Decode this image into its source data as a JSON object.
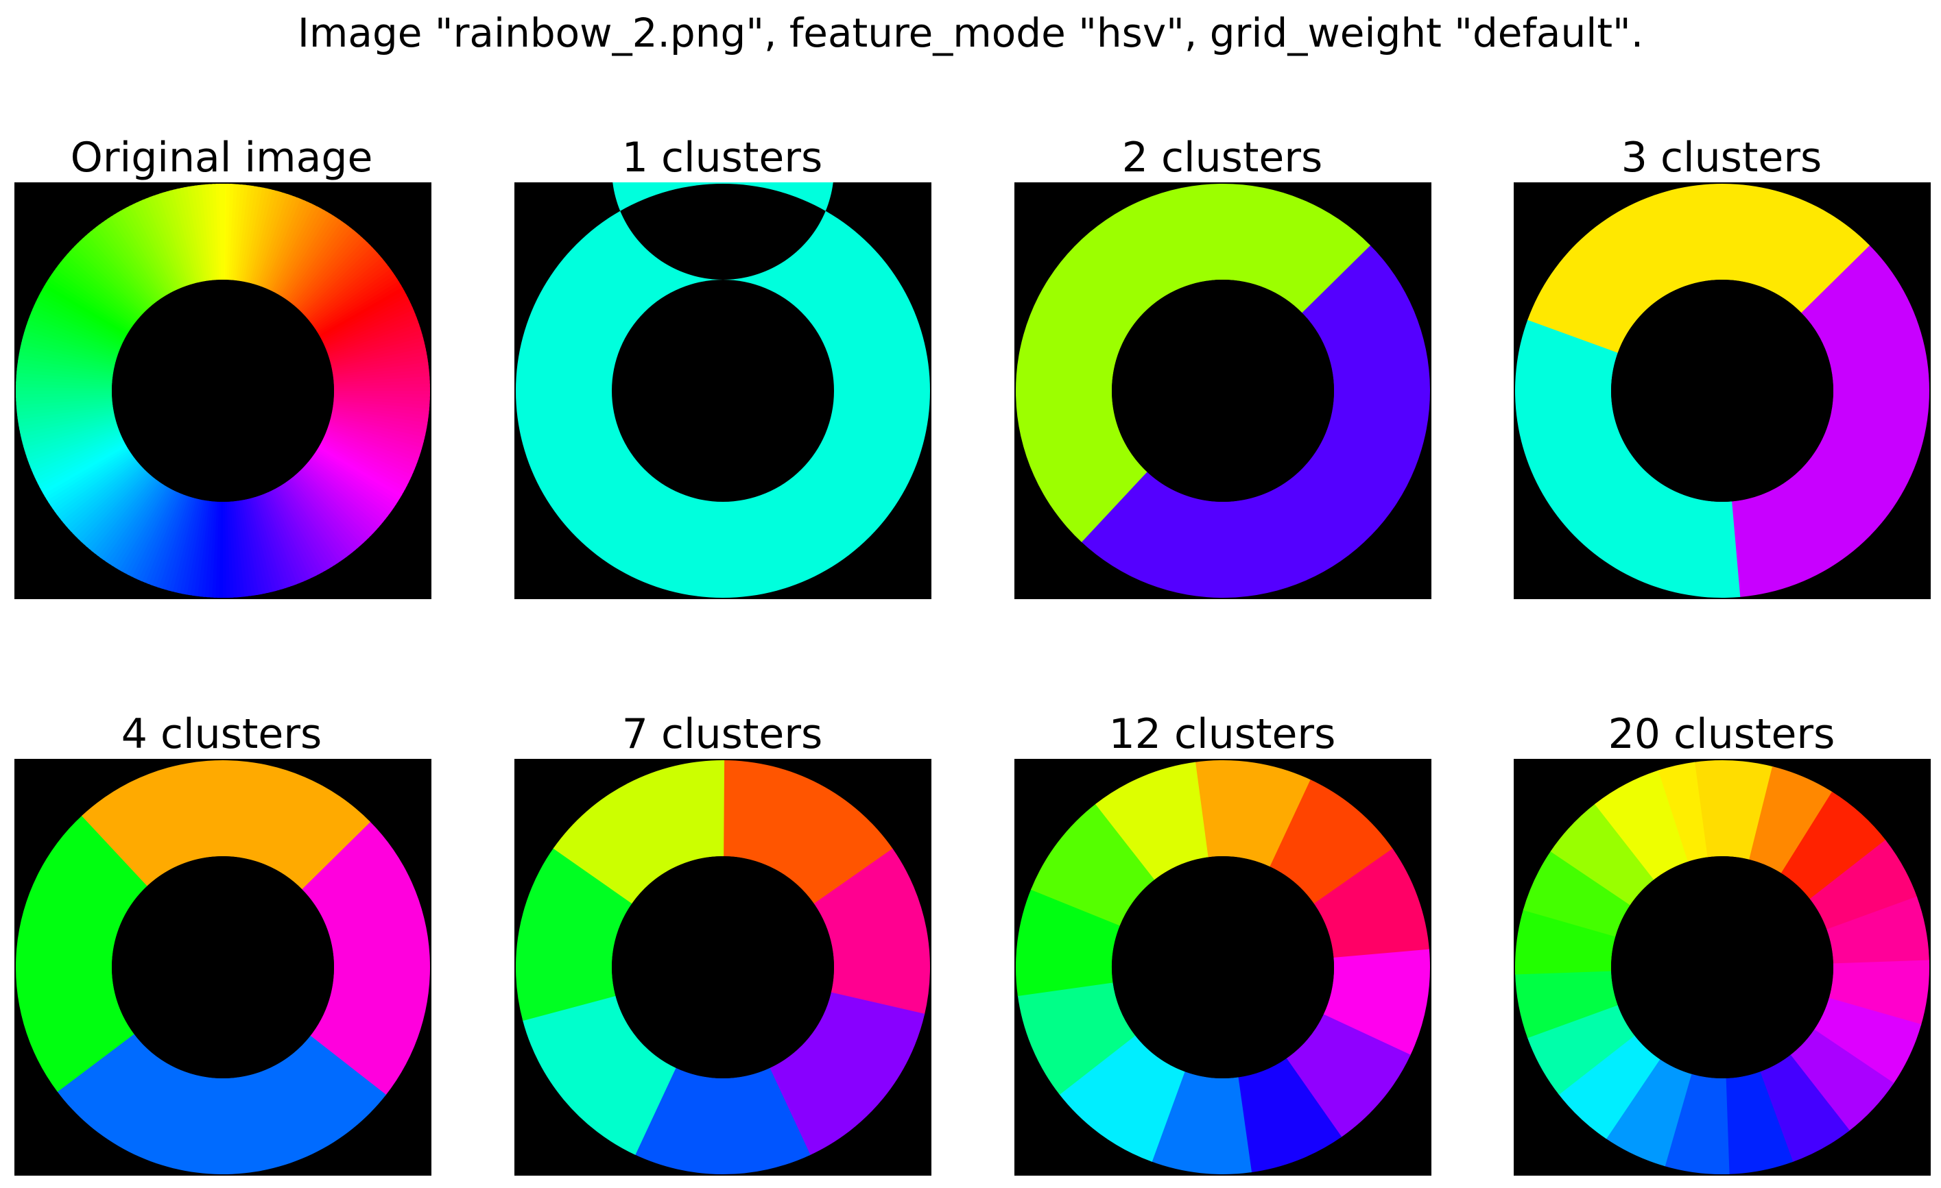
{
  "figure": {
    "title": "Image \"rainbow_2.png\", feature_mode \"hsv\", grid_weight \"default\"."
  },
  "panels": [
    {
      "title": "Original image",
      "kind": "gradient"
    },
    {
      "title": "1 clusters",
      "kind": "segments",
      "segments": [
        {
          "from": 0,
          "to": 360,
          "color": "#00ffdd"
        }
      ]
    },
    {
      "title": "2 clusters",
      "kind": "segments",
      "segments": [
        {
          "from": 45,
          "to": 223,
          "color": "#5400ff"
        },
        {
          "from": 223,
          "to": 405,
          "color": "#9cff00"
        }
      ]
    },
    {
      "title": "3 clusters",
      "kind": "segments",
      "segments": [
        {
          "from": 45,
          "to": 175,
          "color": "#c800ff"
        },
        {
          "from": 175,
          "to": 290,
          "color": "#00ffdd"
        },
        {
          "from": 290,
          "to": 405,
          "color": "#ffe800"
        }
      ]
    },
    {
      "title": "4 clusters",
      "kind": "segments",
      "segments": [
        {
          "from": 45,
          "to": 128,
          "color": "#ff00dd"
        },
        {
          "from": 128,
          "to": 233,
          "color": "#006bff"
        },
        {
          "from": 233,
          "to": 317,
          "color": "#00ff10"
        },
        {
          "from": 317,
          "to": 405,
          "color": "#ffaa00"
        }
      ]
    },
    {
      "title": "7 clusters",
      "kind": "segments",
      "segments": [
        {
          "from": 0,
          "to": 55,
          "color": "#ff5500"
        },
        {
          "from": 55,
          "to": 103,
          "color": "#ff0090"
        },
        {
          "from": 103,
          "to": 155,
          "color": "#8800ff"
        },
        {
          "from": 155,
          "to": 205,
          "color": "#0055ff"
        },
        {
          "from": 205,
          "to": 255,
          "color": "#00ffcc"
        },
        {
          "from": 255,
          "to": 305,
          "color": "#00ff22"
        },
        {
          "from": 305,
          "to": 360,
          "color": "#ccff00"
        }
      ]
    },
    {
      "title": "12 clusters",
      "kind": "segments",
      "segments": [
        {
          "from": -8,
          "to": 25,
          "color": "#ffaa00"
        },
        {
          "from": 25,
          "to": 55,
          "color": "#ff4400"
        },
        {
          "from": 55,
          "to": 85,
          "color": "#ff0066"
        },
        {
          "from": 85,
          "to": 115,
          "color": "#ff00ee"
        },
        {
          "from": 115,
          "to": 145,
          "color": "#9000ff"
        },
        {
          "from": 145,
          "to": 172,
          "color": "#1500ff"
        },
        {
          "from": 172,
          "to": 200,
          "color": "#0077ff"
        },
        {
          "from": 200,
          "to": 232,
          "color": "#00eeff"
        },
        {
          "from": 232,
          "to": 262,
          "color": "#00ff88"
        },
        {
          "from": 262,
          "to": 292,
          "color": "#00ff11"
        },
        {
          "from": 292,
          "to": 322,
          "color": "#55ff00"
        },
        {
          "from": 322,
          "to": 352,
          "color": "#ddff00"
        }
      ]
    },
    {
      "title": "20 clusters",
      "kind": "segments",
      "segments": [
        {
          "from": -8,
          "to": 14,
          "color": "#ffdd00"
        },
        {
          "from": 14,
          "to": 32,
          "color": "#ff8800"
        },
        {
          "from": 32,
          "to": 52,
          "color": "#ff2200"
        },
        {
          "from": 52,
          "to": 70,
          "color": "#ff0077"
        },
        {
          "from": 70,
          "to": 88,
          "color": "#ff0099"
        },
        {
          "from": 88,
          "to": 106,
          "color": "#ff00cc"
        },
        {
          "from": 106,
          "to": 124,
          "color": "#dd00ff"
        },
        {
          "from": 124,
          "to": 142,
          "color": "#aa00ff"
        },
        {
          "from": 142,
          "to": 160,
          "color": "#4400ff"
        },
        {
          "from": 160,
          "to": 178,
          "color": "#0022ff"
        },
        {
          "from": 178,
          "to": 196,
          "color": "#0055ff"
        },
        {
          "from": 196,
          "to": 214,
          "color": "#0099ff"
        },
        {
          "from": 214,
          "to": 232,
          "color": "#00eeff"
        },
        {
          "from": 232,
          "to": 250,
          "color": "#00ffaa"
        },
        {
          "from": 250,
          "to": 268,
          "color": "#00ff44"
        },
        {
          "from": 268,
          "to": 286,
          "color": "#22ff00"
        },
        {
          "from": 286,
          "to": 304,
          "color": "#44ff00"
        },
        {
          "from": 304,
          "to": 322,
          "color": "#99ff00"
        },
        {
          "from": 322,
          "to": 342,
          "color": "#eeff00"
        },
        {
          "from": 342,
          "to": 352,
          "color": "#ffee00"
        }
      ]
    }
  ]
}
